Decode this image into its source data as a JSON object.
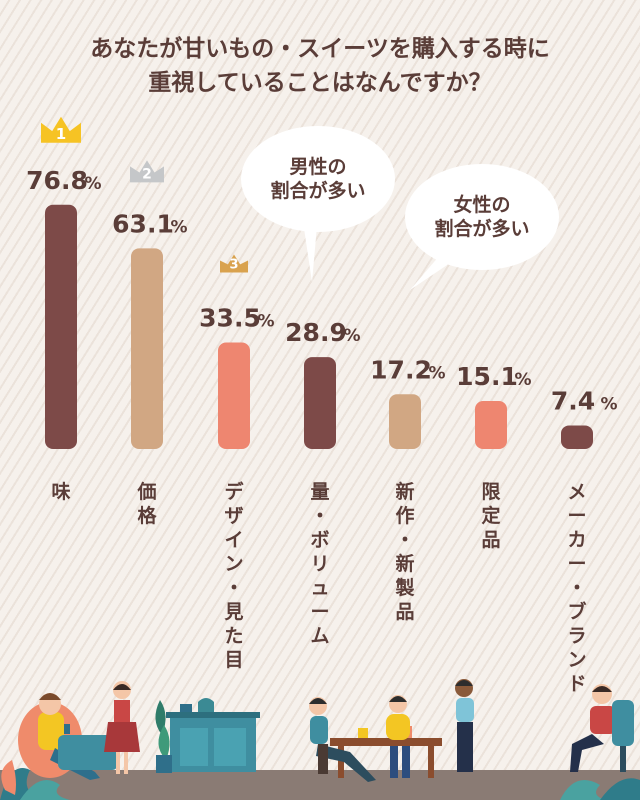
{
  "title": {
    "line1": "あなたが甘いもの・スイーツを購入する時に",
    "line2": "重視していることはなんですか？"
  },
  "chart_data": {
    "type": "bar",
    "categories": [
      "味",
      "価格",
      "デザイン・見た目",
      "量・ボリューム",
      "新作・新製品",
      "限定品",
      "メーカー・ブランド"
    ],
    "values": [
      76.8,
      63.1,
      33.5,
      28.9,
      17.2,
      15.1,
      7.4
    ],
    "unit": "%",
    "ranks": [
      "1",
      "2",
      "3"
    ],
    "bar_colors": [
      "#7d4a48",
      "#d1a783",
      "#ee8670",
      "#7d4a48",
      "#d1a783",
      "#ee8670",
      "#7d4a48"
    ],
    "crown_colors": [
      "#f6c324",
      "#c5c7c9",
      "#d9a24e"
    ]
  },
  "annotations": {
    "male": "男性の\n割合が多い",
    "female": "女性の\n割合が多い"
  },
  "colors": {
    "background": "#f6f1ec",
    "text": "#5a3d38"
  }
}
